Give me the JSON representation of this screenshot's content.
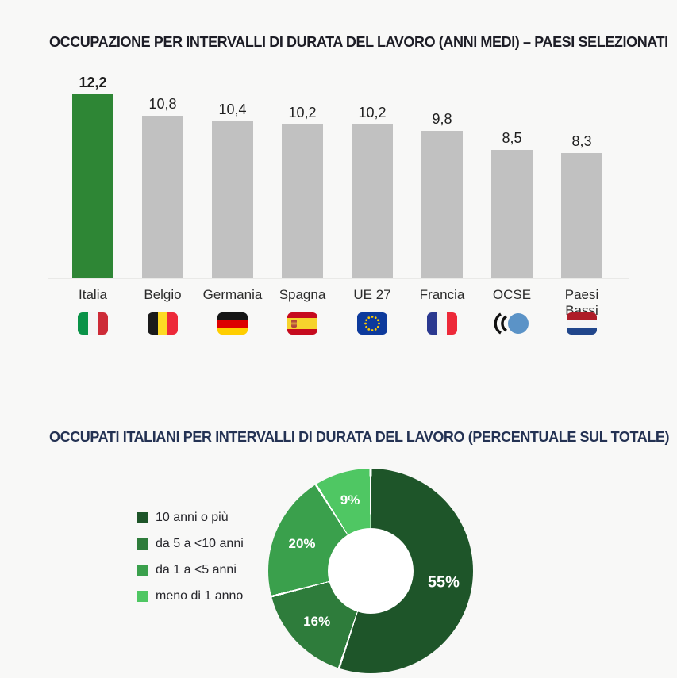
{
  "page": {
    "background": "#f8f8f7"
  },
  "chart_data": [
    {
      "type": "bar",
      "title": "OCCUPAZIONE PER INTERVALLI DI DURATA DEL LAVORO (ANNI MEDI) – PAESI SELEZIONATI",
      "title_color": "#1d1d26",
      "categories": [
        "Italia",
        "Belgio",
        "Germania",
        "Spagna",
        "UE 27",
        "Francia",
        "OCSE",
        "Paesi Bassi"
      ],
      "values": [
        12.2,
        10.8,
        10.4,
        10.2,
        10.2,
        9.8,
        8.5,
        8.3
      ],
      "value_labels": [
        "12,2",
        "10,8",
        "10,4",
        "10,2",
        "10,2",
        "9,8",
        "8,5",
        "8,3"
      ],
      "flags": [
        "italy",
        "belgium",
        "germany",
        "spain",
        "eu",
        "france",
        "oecd",
        "netherlands"
      ],
      "highlight_index": 0,
      "colors": {
        "highlight": "#2e8635",
        "bar": "#c1c1c1",
        "value_text": "#1f1f1f",
        "category_text": "#2b2b2b",
        "baseline": "#e9e9e7"
      },
      "ylim": [
        0,
        12.2
      ],
      "xlabel": "",
      "ylabel": "",
      "grid": false,
      "legend": "none"
    },
    {
      "type": "pie",
      "donut": true,
      "title": "OCCUPATI ITALIANI PER INTERVALLI DI DURATA DEL LAVORO (PERCENTUALE SUL TOTALE)",
      "title_color": "#243253",
      "labels": [
        "10 anni o più",
        "da 5 a <10 anni",
        "da 1 a <5 anni",
        "meno di 1 anno"
      ],
      "values": [
        55,
        16,
        20,
        9
      ],
      "value_labels": [
        "55%",
        "16%",
        "20%",
        "9%"
      ],
      "colors": [
        "#1e5529",
        "#2e7c3b",
        "#3aa04c",
        "#4fc763"
      ],
      "slice_label_color": "#ffffff",
      "legend_text_color": "#26262b",
      "legend_position": "left",
      "hole_ratio": 0.42,
      "start_angle_deg": 0,
      "direction": "clockwise"
    }
  ]
}
